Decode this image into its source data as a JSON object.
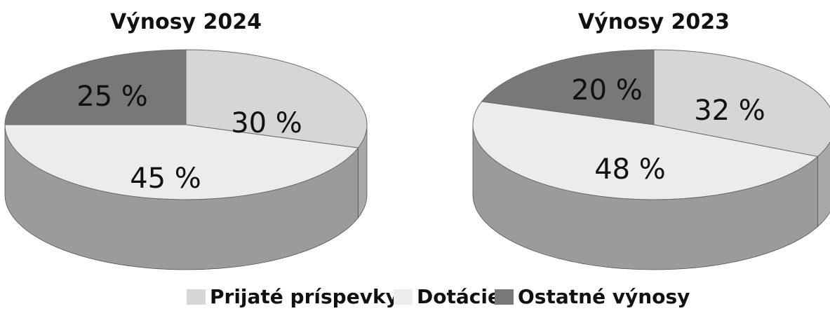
{
  "chart_data": [
    {
      "type": "pie",
      "title": "Výnosy 2024",
      "categories": [
        "Prijaté príspevky",
        "Dotácie",
        "Ostatné výnosy"
      ],
      "values": [
        30,
        45,
        25
      ],
      "labels": [
        "30 %",
        "45 %",
        "25 %"
      ]
    },
    {
      "type": "pie",
      "title": "Výnosy 2023",
      "categories": [
        "Prijaté príspevky",
        "Dotácie",
        "Ostatné výnosy"
      ],
      "values": [
        32,
        48,
        20
      ],
      "labels": [
        "32 %",
        "48 %",
        "20 %"
      ]
    }
  ],
  "legend": {
    "placement": "bottom",
    "items": [
      {
        "label": "Prijaté príspevky",
        "color": "#d6d6d6"
      },
      {
        "label": "Dotácie",
        "color": "#ececec"
      },
      {
        "label": "Ostatné výnosy",
        "color": "#787878"
      }
    ]
  },
  "colors": {
    "slice_top": [
      "#d6d6d6",
      "#ececec",
      "#787878"
    ],
    "slice_side": [
      "#a8a8a8",
      "#9b9b9b",
      "#555555"
    ]
  }
}
